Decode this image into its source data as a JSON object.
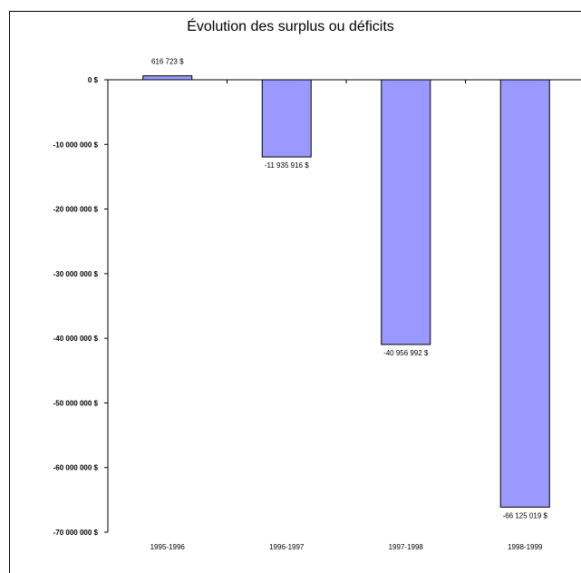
{
  "chart_data": {
    "type": "bar",
    "title": "Évolution des surplus ou déficits",
    "categories": [
      "1995-1996",
      "1996-1997",
      "1997-1998",
      "1998-1999"
    ],
    "values": [
      616723,
      -11935916,
      -40956992,
      -66125019
    ],
    "data_labels": [
      "616 723 $",
      "-11 935 916 $",
      "-40 956 992 $",
      "-66 125 019 $"
    ],
    "xlabel": "",
    "ylabel": "",
    "ylim": [
      -70000000,
      0
    ],
    "yticks": [
      0,
      -10000000,
      -20000000,
      -30000000,
      -40000000,
      -50000000,
      -60000000,
      -70000000
    ],
    "ytick_labels": [
      "0 $",
      "-10 000 000 $",
      "-20 000 000 $",
      "-30 000 000 $",
      "-40 000 000 $",
      "-50 000 000 $",
      "-60 000 000 $",
      "-70 000 000 $"
    ],
    "grid": false,
    "legend": "none",
    "bar_color": "#9999ff",
    "bar_edge_color": "#000000"
  }
}
